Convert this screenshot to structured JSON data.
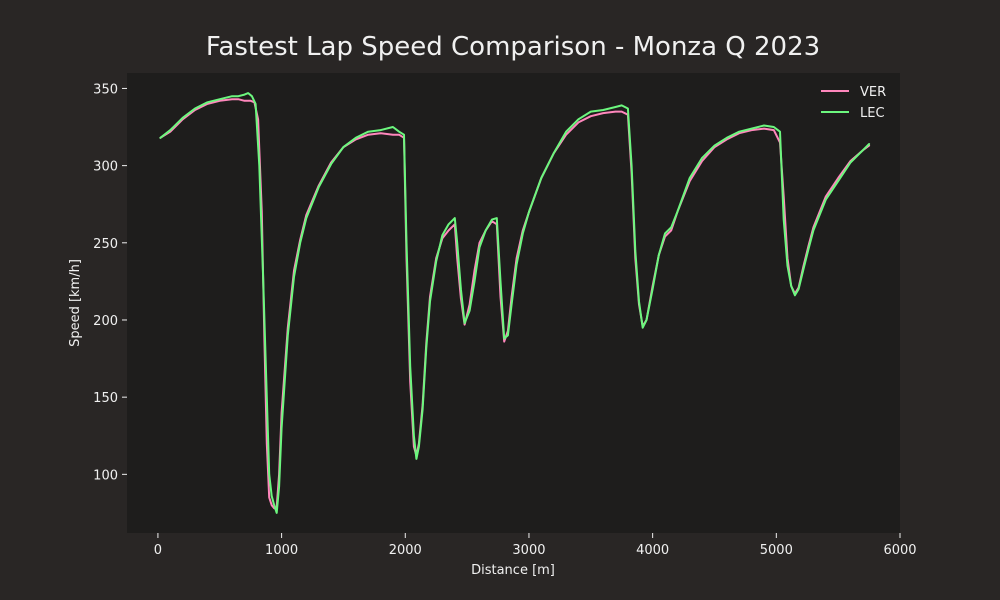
{
  "chart_data": {
    "type": "line",
    "title": "Fastest Lap Speed Comparison - Monza Q 2023",
    "xlabel": "Distance [m]",
    "ylabel": "Speed [km/h]",
    "xlim": [
      -250,
      6000
    ],
    "ylim": [
      62,
      360
    ],
    "xticks": [
      0,
      1000,
      2000,
      3000,
      4000,
      5000,
      6000
    ],
    "yticks": [
      100,
      150,
      200,
      250,
      300,
      350
    ],
    "grid": false,
    "legend_position": "top-right",
    "colors": {
      "figure_bg": "#292625",
      "plot_bg": "#1e1d1c",
      "text": "#f0f0f0",
      "VER": "#ff87bc",
      "LEC": "#6cf77e"
    },
    "series": [
      {
        "name": "VER",
        "color": "#ff87bc",
        "x": [
          20,
          100,
          200,
          300,
          400,
          500,
          600,
          650,
          700,
          750,
          780,
          810,
          840,
          860,
          880,
          900,
          920,
          940,
          960,
          980,
          1000,
          1050,
          1100,
          1150,
          1200,
          1300,
          1400,
          1500,
          1600,
          1700,
          1800,
          1900,
          1950,
          1990,
          2010,
          2040,
          2070,
          2090,
          2110,
          2140,
          2170,
          2200,
          2250,
          2300,
          2350,
          2400,
          2420,
          2450,
          2480,
          2520,
          2560,
          2600,
          2650,
          2700,
          2740,
          2770,
          2800,
          2830,
          2860,
          2900,
          2950,
          3000,
          3100,
          3200,
          3300,
          3400,
          3500,
          3600,
          3700,
          3750,
          3800,
          3830,
          3860,
          3890,
          3920,
          3950,
          4000,
          4050,
          4100,
          4150,
          4200,
          4300,
          4400,
          4500,
          4600,
          4700,
          4800,
          4900,
          4980,
          5030,
          5060,
          5090,
          5120,
          5150,
          5180,
          5220,
          5260,
          5300,
          5400,
          5500,
          5600,
          5700,
          5750
        ],
        "y": [
          318,
          322,
          330,
          336,
          340,
          342,
          343,
          343,
          342,
          342,
          341,
          330,
          270,
          190,
          120,
          85,
          80,
          78,
          79,
          100,
          140,
          195,
          232,
          252,
          268,
          287,
          302,
          312,
          317,
          320,
          321,
          320,
          320,
          318,
          240,
          160,
          118,
          112,
          120,
          145,
          185,
          215,
          240,
          253,
          258,
          262,
          240,
          214,
          197,
          210,
          232,
          250,
          258,
          264,
          262,
          215,
          186,
          193,
          215,
          240,
          258,
          270,
          292,
          308,
          320,
          328,
          332,
          334,
          335,
          335,
          333,
          295,
          240,
          210,
          196,
          200,
          222,
          242,
          254,
          258,
          270,
          290,
          303,
          312,
          317,
          321,
          323,
          324,
          323,
          315,
          280,
          240,
          222,
          217,
          221,
          235,
          248,
          260,
          280,
          292,
          303,
          310,
          313
        ]
      },
      {
        "name": "LEC",
        "color": "#6cf77e",
        "x": [
          20,
          100,
          200,
          300,
          400,
          500,
          600,
          650,
          700,
          730,
          760,
          790,
          820,
          850,
          880,
          900,
          920,
          940,
          960,
          980,
          1000,
          1050,
          1100,
          1150,
          1200,
          1300,
          1400,
          1500,
          1600,
          1700,
          1800,
          1900,
          1950,
          1990,
          2010,
          2040,
          2070,
          2090,
          2110,
          2140,
          2170,
          2200,
          2250,
          2300,
          2350,
          2400,
          2420,
          2450,
          2480,
          2520,
          2560,
          2600,
          2650,
          2700,
          2740,
          2770,
          2800,
          2830,
          2860,
          2900,
          2950,
          3000,
          3100,
          3200,
          3300,
          3400,
          3500,
          3600,
          3700,
          3750,
          3800,
          3830,
          3860,
          3890,
          3920,
          3950,
          4000,
          4050,
          4100,
          4150,
          4200,
          4300,
          4400,
          4500,
          4600,
          4700,
          4800,
          4900,
          4980,
          5030,
          5060,
          5090,
          5120,
          5150,
          5180,
          5220,
          5260,
          5300,
          5400,
          5500,
          5600,
          5700,
          5750
        ],
        "y": [
          318,
          323,
          331,
          337,
          341,
          343,
          345,
          345,
          346,
          347,
          345,
          340,
          300,
          230,
          150,
          100,
          86,
          80,
          75,
          92,
          130,
          190,
          228,
          250,
          266,
          286,
          301,
          312,
          318,
          322,
          323,
          325,
          322,
          320,
          250,
          170,
          125,
          110,
          118,
          142,
          182,
          212,
          238,
          255,
          262,
          266,
          250,
          220,
          198,
          206,
          225,
          247,
          258,
          265,
          266,
          225,
          188,
          190,
          210,
          236,
          256,
          270,
          292,
          308,
          322,
          330,
          335,
          336,
          338,
          339,
          337,
          300,
          245,
          212,
          195,
          200,
          220,
          242,
          256,
          260,
          270,
          292,
          305,
          313,
          318,
          322,
          324,
          326,
          325,
          322,
          265,
          235,
          222,
          216,
          220,
          233,
          246,
          258,
          278,
          290,
          302,
          310,
          314
        ]
      }
    ]
  }
}
